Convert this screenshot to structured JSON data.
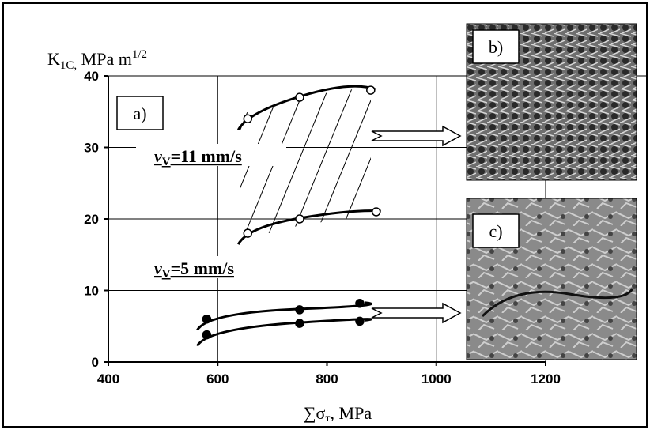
{
  "chart_data": {
    "type": "scatter",
    "ylabel": {
      "main": "K",
      "sub": "1C,",
      "rest": " MPa m",
      "sup": "1/2"
    },
    "xlabel": {
      "main": "∑σ",
      "sub": "т",
      "rest": ", MPa"
    },
    "panels": [
      "a)",
      "b)",
      "c)"
    ],
    "speeds": [
      {
        "symbol": "v",
        "sub": "V",
        "text": "=11 mm/s"
      },
      {
        "symbol": "v",
        "sub": "V",
        "text": "=5 mm/s"
      }
    ],
    "xlim": [
      400,
      1200
    ],
    "xticks": [
      400,
      600,
      800,
      1000,
      1200
    ],
    "ylim": [
      0,
      40
    ],
    "yticks": [
      0,
      10,
      20,
      30,
      40
    ],
    "grid": true,
    "series": [
      {
        "marker": "open",
        "color": "#000000",
        "x": [
          655,
          750,
          880
        ],
        "values": [
          34,
          37,
          38
        ]
      },
      {
        "marker": "open",
        "color": "#000000",
        "x": [
          655,
          750,
          890
        ],
        "values": [
          18,
          20,
          21
        ]
      },
      {
        "marker": "filled",
        "color": "#000000",
        "x": [
          580,
          750,
          860
        ],
        "values": [
          6,
          7.3,
          8.2
        ]
      },
      {
        "marker": "filled",
        "color": "#000000",
        "x": [
          580,
          750,
          860
        ],
        "values": [
          3.8,
          5.4,
          5.7
        ]
      }
    ]
  }
}
